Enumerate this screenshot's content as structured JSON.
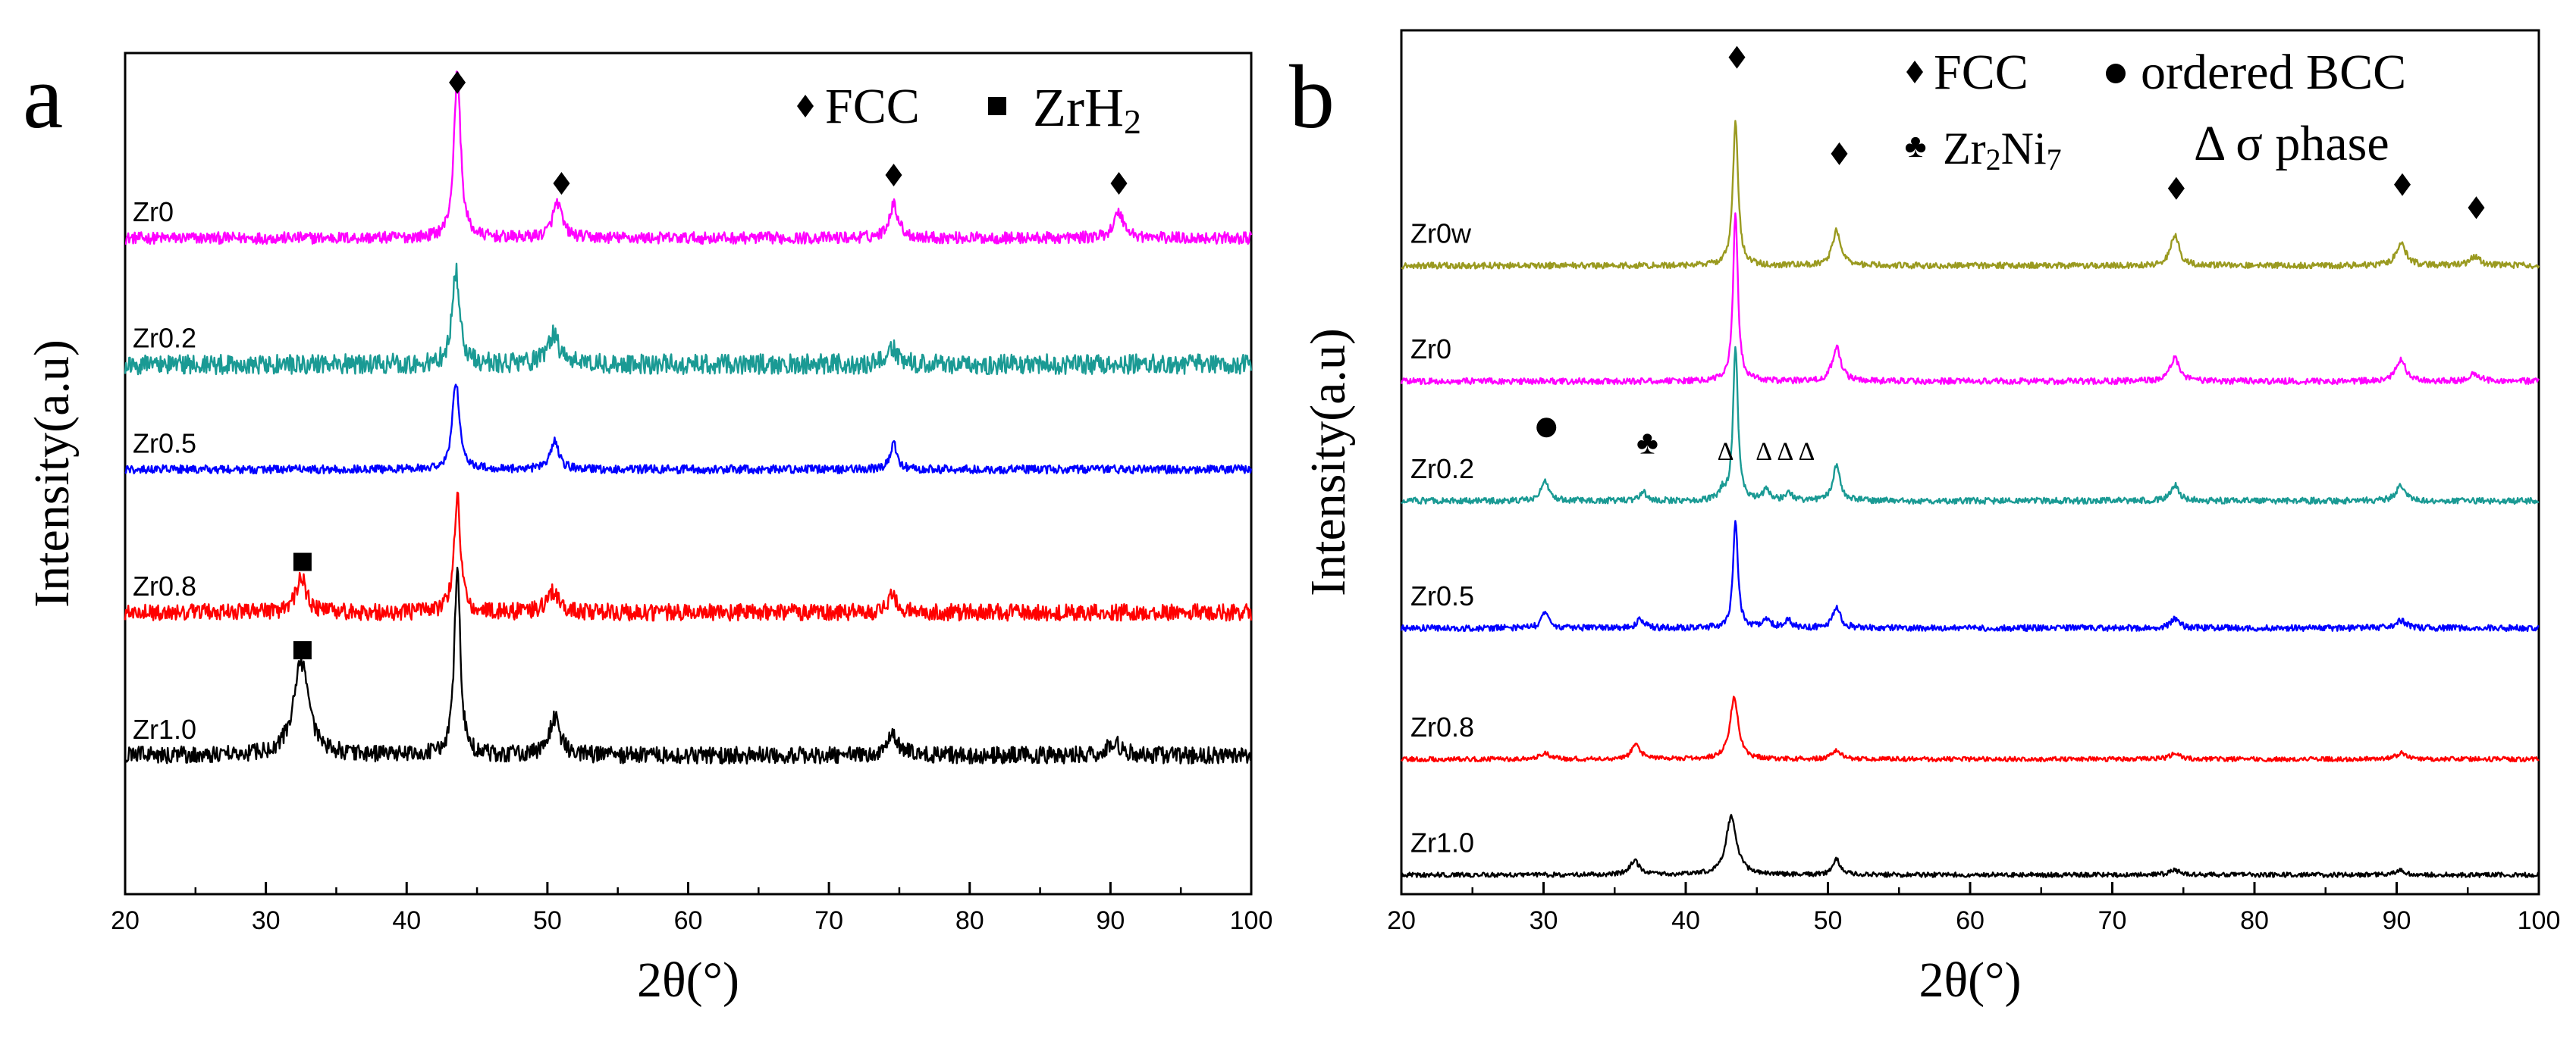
{
  "chart_data": [
    {
      "type": "line",
      "panel_label": "a",
      "xlabel": "2θ(°)",
      "ylabel": "Intensity(a.u)",
      "xlim": [
        20,
        100
      ],
      "xticks": [
        20,
        30,
        40,
        50,
        60,
        70,
        80,
        90,
        100
      ],
      "legend": [
        {
          "symbol": "diamond",
          "label": "FCC"
        },
        {
          "symbol": "square",
          "label": "ZrH",
          "subscript": "2"
        }
      ],
      "series": [
        {
          "name": "Zr0",
          "color": "#ff00ff",
          "baseline": 0.78,
          "noise": 0.007,
          "peaks": [
            [
              43.6,
              0.2,
              0.28
            ],
            [
              50.7,
              0.042,
              0.4
            ],
            [
              74.6,
              0.04,
              0.4
            ],
            [
              90.6,
              0.03,
              0.45
            ]
          ]
        },
        {
          "name": "Zr0.2",
          "color": "#1a9a94",
          "baseline": 0.63,
          "noise": 0.012,
          "peaks": [
            [
              43.5,
              0.11,
              0.32
            ],
            [
              50.4,
              0.035,
              0.5
            ],
            [
              74.5,
              0.02,
              0.4
            ]
          ]
        },
        {
          "name": "Zr0.5",
          "color": "#0000ff",
          "baseline": 0.505,
          "noise": 0.005,
          "peaks": [
            [
              43.5,
              0.105,
              0.3
            ],
            [
              50.5,
              0.035,
              0.35
            ],
            [
              74.6,
              0.03,
              0.3
            ]
          ]
        },
        {
          "name": "Zr0.8",
          "color": "#ff0000",
          "baseline": 0.335,
          "noise": 0.01,
          "peaks": [
            [
              32.5,
              0.045,
              0.4
            ],
            [
              43.6,
              0.14,
              0.27
            ],
            [
              50.4,
              0.025,
              0.5
            ],
            [
              74.5,
              0.02,
              0.4
            ]
          ]
        },
        {
          "name": "Zr1.0",
          "color": "#000000",
          "baseline": 0.165,
          "noise": 0.01,
          "peaks": [
            [
              32.5,
              0.11,
              0.65
            ],
            [
              43.6,
              0.225,
              0.25
            ],
            [
              50.5,
              0.045,
              0.45
            ],
            [
              74.5,
              0.025,
              0.5
            ],
            [
              90.3,
              0.015,
              0.6
            ]
          ]
        }
      ],
      "markers": [
        {
          "symbol": "diamond",
          "x": 43.6,
          "y": 0.965
        },
        {
          "symbol": "diamond",
          "x": 51.0,
          "y": 0.845
        },
        {
          "symbol": "diamond",
          "x": 74.6,
          "y": 0.855
        },
        {
          "symbol": "diamond",
          "x": 90.6,
          "y": 0.845
        },
        {
          "symbol": "square",
          "x": 32.6,
          "y": 0.395
        },
        {
          "symbol": "square",
          "x": 32.6,
          "y": 0.29
        }
      ]
    },
    {
      "type": "line",
      "panel_label": "b",
      "xlabel": "2θ(°)",
      "ylabel": "Intensity(a.u)",
      "xlim": [
        20,
        100
      ],
      "xticks": [
        20,
        30,
        40,
        50,
        60,
        70,
        80,
        90,
        100
      ],
      "legend": [
        {
          "symbol": "diamond",
          "label": "FCC"
        },
        {
          "symbol": "circle",
          "label": "ordered BCC"
        },
        {
          "symbol": "club",
          "label": "Zr",
          "sub1": "2",
          "label2": "Ni",
          "sub2": "7"
        },
        {
          "symbol": "triangle",
          "label": "Δ σ phase"
        }
      ],
      "series": [
        {
          "name": "Zr0w",
          "color": "#9a9a20",
          "baseline": 0.815,
          "noise": 0.004,
          "peaks": [
            [
              43.5,
              0.19,
              0.22
            ],
            [
              50.6,
              0.045,
              0.35
            ],
            [
              74.4,
              0.04,
              0.35
            ],
            [
              90.3,
              0.03,
              0.4
            ],
            [
              95.5,
              0.012,
              0.4
            ]
          ]
        },
        {
          "name": "Zr0",
          "color": "#ff00ff",
          "baseline": 0.665,
          "noise": 0.004,
          "peaks": [
            [
              43.5,
              0.22,
              0.2
            ],
            [
              50.6,
              0.045,
              0.35
            ],
            [
              74.4,
              0.03,
              0.4
            ],
            [
              90.3,
              0.028,
              0.4
            ],
            [
              95.5,
              0.01,
              0.4
            ]
          ]
        },
        {
          "name": "Zr0.2",
          "color": "#1a9a94",
          "baseline": 0.51,
          "noise": 0.004,
          "peaks": [
            [
              30.1,
              0.028,
              0.3
            ],
            [
              37.0,
              0.012,
              0.3
            ],
            [
              42.6,
              0.012,
              0.25
            ],
            [
              43.5,
              0.2,
              0.2
            ],
            [
              45.7,
              0.014,
              0.3
            ],
            [
              47.3,
              0.01,
              0.3
            ],
            [
              50.6,
              0.045,
              0.3
            ],
            [
              74.4,
              0.02,
              0.35
            ],
            [
              90.3,
              0.02,
              0.4
            ]
          ]
        },
        {
          "name": "Zr0.5",
          "color": "#0000ff",
          "baseline": 0.345,
          "noise": 0.004,
          "peaks": [
            [
              30.1,
              0.02,
              0.3
            ],
            [
              36.8,
              0.012,
              0.3
            ],
            [
              43.5,
              0.14,
              0.2
            ],
            [
              45.7,
              0.012,
              0.3
            ],
            [
              47.2,
              0.01,
              0.3
            ],
            [
              50.6,
              0.025,
              0.35
            ],
            [
              74.4,
              0.012,
              0.35
            ],
            [
              90.3,
              0.01,
              0.4
            ]
          ]
        },
        {
          "name": "Zr0.8",
          "color": "#ff0000",
          "baseline": 0.175,
          "noise": 0.003,
          "peaks": [
            [
              30.1,
              0.008,
              0.4
            ],
            [
              36.5,
              0.02,
              0.35
            ],
            [
              43.4,
              0.08,
              0.35
            ],
            [
              50.6,
              0.012,
              0.35
            ],
            [
              74.4,
              0.008,
              0.4
            ],
            [
              90.3,
              0.008,
              0.4
            ]
          ]
        },
        {
          "name": "Zr1.0",
          "color": "#000000",
          "baseline": 0.025,
          "noise": 0.003,
          "peaks": [
            [
              36.4,
              0.018,
              0.4
            ],
            [
              43.2,
              0.075,
              0.45
            ],
            [
              50.6,
              0.02,
              0.3
            ],
            [
              74.4,
              0.006,
              0.4
            ],
            [
              90.3,
              0.006,
              0.4
            ]
          ]
        }
      ],
      "markers": [
        {
          "symbol": "diamond",
          "x": 43.6,
          "y": 1.085
        },
        {
          "symbol": "diamond",
          "x": 50.8,
          "y": 0.96
        },
        {
          "symbol": "diamond",
          "x": 74.5,
          "y": 0.915
        },
        {
          "symbol": "diamond",
          "x": 90.4,
          "y": 0.92
        },
        {
          "symbol": "diamond",
          "x": 95.6,
          "y": 0.89
        },
        {
          "symbol": "circle",
          "x": 30.2,
          "y": 0.605
        },
        {
          "symbol": "club",
          "x": 37.3,
          "y": 0.585
        },
        {
          "symbol": "triangle",
          "x": 42.8,
          "y": 0.575
        },
        {
          "symbol": "triangle",
          "x": 45.5,
          "y": 0.575
        },
        {
          "symbol": "triangle",
          "x": 47.0,
          "y": 0.575
        },
        {
          "symbol": "triangle",
          "x": 48.5,
          "y": 0.575
        }
      ]
    }
  ]
}
